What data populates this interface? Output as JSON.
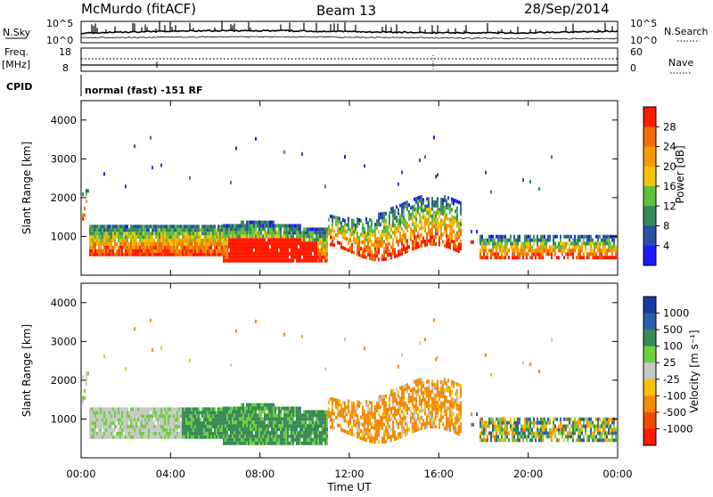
{
  "header": {
    "station": "McMurdo (fitACF)",
    "beam": "Beam 13",
    "date": "28/Sep/2014"
  },
  "summary_panels": {
    "nsky_label": "N.Sky",
    "nsearch_label": "N.Search",
    "noise_ticks": [
      "10^5",
      "10^0"
    ],
    "freq_label_1": "Freq.",
    "freq_label_2": "[MHz]",
    "freq_ticks": [
      "18",
      "8"
    ],
    "nave_label": "Nave",
    "nave_ticks": [
      "60",
      "0"
    ],
    "cpid_label": "CPID",
    "cpid_text": "normal (fast) -151 RF"
  },
  "colors": {
    "power_scale": [
      "#1a1aff",
      "#2a50a8",
      "#3a8a5a",
      "#5fbf3f",
      "#f2c400",
      "#f59a00",
      "#f26a00",
      "#ff1a00"
    ],
    "velocity_scale": [
      "#ff1a00",
      "#f24a00",
      "#f58a00",
      "#f5c000",
      "#c8c8c8",
      "#6fcf3f",
      "#3a8a5a",
      "#2a60a8",
      "#1a3aa0"
    ]
  },
  "chart_data": [
    {
      "type": "heatmap",
      "name_hint": "power",
      "ylabel": "Slant Range [km]",
      "yticks": [
        "4000",
        "3000",
        "2000",
        "1000"
      ],
      "ylim": [
        0,
        4500
      ],
      "colorbar_label": "Power [dB]",
      "colorbar_ticks": [
        "28",
        "24",
        "20",
        "16",
        "12",
        "8",
        "4"
      ],
      "colorbar_range": [
        0,
        32
      ]
    },
    {
      "type": "heatmap",
      "name_hint": "velocity",
      "ylabel": "Slant Range [km]",
      "yticks": [
        "4000",
        "3000",
        "2000",
        "1000"
      ],
      "ylim": [
        0,
        4500
      ],
      "colorbar_label": "Velocity [m s⁻¹]",
      "colorbar_ticks": [
        "1000",
        "500",
        "100",
        "25",
        "-25",
        "-100",
        "-500",
        "-1000"
      ],
      "xlabel": "Time UT",
      "xticks": [
        "00:00",
        "04:00",
        "08:00",
        "12:00",
        "16:00",
        "20:00",
        "00:00"
      ],
      "xlim_hours": [
        0,
        24
      ]
    }
  ]
}
